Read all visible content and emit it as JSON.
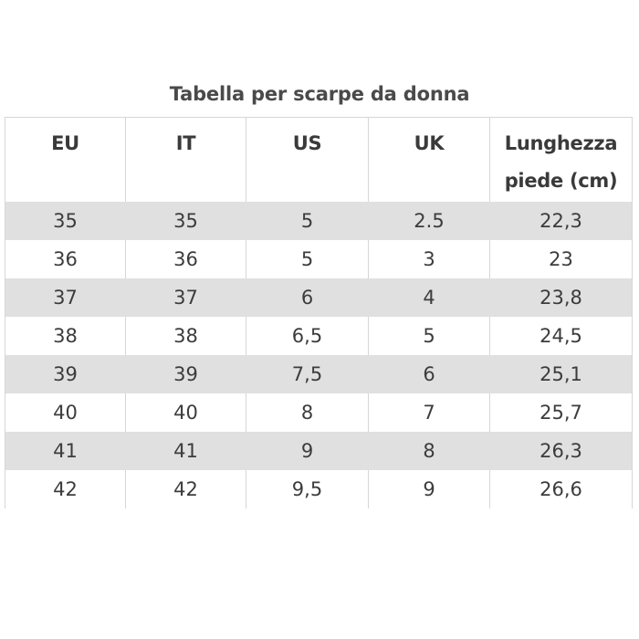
{
  "table": {
    "caption": "Tabella per scarpe da donna",
    "headers": {
      "eu": "EU",
      "it": "IT",
      "us": "US",
      "uk": "UK",
      "length": "Lunghezza piede (cm)"
    },
    "rows": [
      {
        "eu": "35",
        "it": "35",
        "us": "5",
        "uk": "2.5",
        "length": "22,3"
      },
      {
        "eu": "36",
        "it": "36",
        "us": "5",
        "uk": "3",
        "length": "23"
      },
      {
        "eu": "37",
        "it": "37",
        "us": "6",
        "uk": "4",
        "length": "23,8"
      },
      {
        "eu": "38",
        "it": "38",
        "us": "6,5",
        "uk": "5",
        "length": "24,5"
      },
      {
        "eu": "39",
        "it": "39",
        "us": "7,5",
        "uk": "6",
        "length": "25,1"
      },
      {
        "eu": "40",
        "it": "40",
        "us": "8",
        "uk": "7",
        "length": "25,7"
      },
      {
        "eu": "41",
        "it": "41",
        "us": "9",
        "uk": "8",
        "length": "26,3"
      },
      {
        "eu": "42",
        "it": "42",
        "us": "9,5",
        "uk": "9",
        "length": "26,6"
      }
    ],
    "colors": {
      "stripe": "#e0e0e0",
      "border": "#d6d6d6",
      "text": "#3a3a3a"
    }
  }
}
